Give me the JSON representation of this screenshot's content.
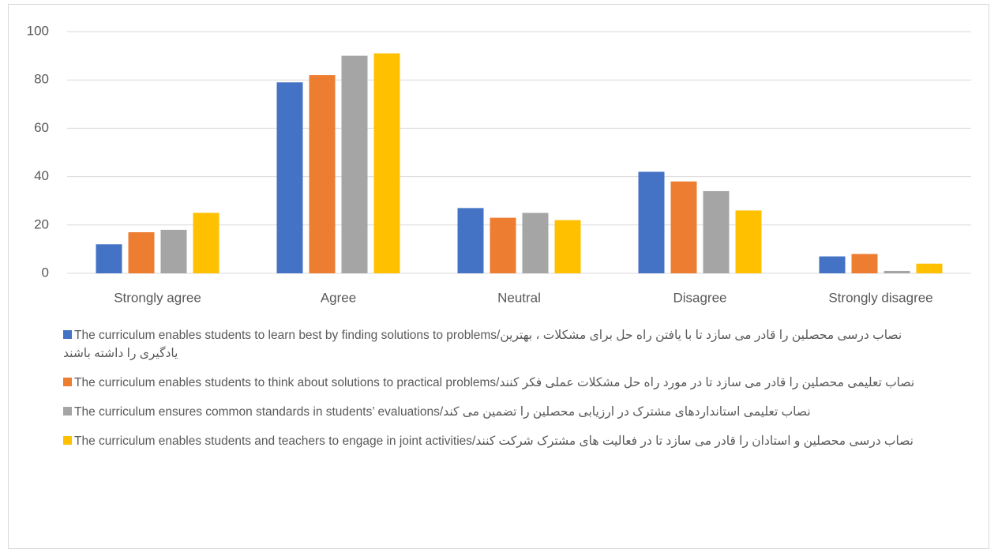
{
  "chart_data": {
    "type": "bar",
    "categories": [
      "Strongly agree",
      "Agree",
      "Neutral",
      "Disagree",
      "Strongly disagree"
    ],
    "series": [
      {
        "name": "The curriculum enables students to learn best by finding solutions to problems/نصاب درسی محصلین را قادر می سازد تا با یافتن راه حل برای مشکلات ، بهترین یادگیری را داشته باشند",
        "color": "#4472c4",
        "values": [
          12,
          79,
          27,
          42,
          7
        ]
      },
      {
        "name": "The curriculum enables students to think about solutions to practical problems/نصاب تعلیمی محصلین را قادر می سازد تا در مورد راه حل مشکلات عملی فکر کنند",
        "color": "#ed7d31",
        "values": [
          17,
          82,
          23,
          38,
          8
        ]
      },
      {
        "name": "The curriculum ensures common standards in students’ evaluations/نصاب تعلیمی استاندارد‌های مشترک در ارزیابی محصلین را تضمین می کند",
        "color": "#a5a5a5",
        "values": [
          18,
          90,
          25,
          34,
          1
        ]
      },
      {
        "name": "The curriculum enables students and teachers to engage in joint activities/نصاب درسی محصلین و استادان را قادر می سازد تا در فعالیت های مشترک شرکت کنند",
        "color": "#ffc000",
        "values": [
          25,
          91,
          22,
          26,
          4
        ]
      }
    ],
    "ylim": [
      0,
      100
    ],
    "yticks": [
      0,
      20,
      40,
      60,
      80,
      100
    ],
    "grid": true,
    "legend": "bottom"
  }
}
